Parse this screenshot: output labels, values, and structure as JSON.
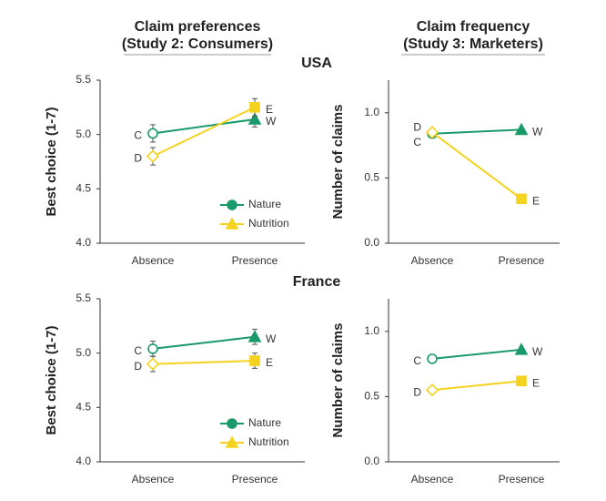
{
  "column_titles": [
    [
      "Claim preferences",
      "(Study 2: Consumers)"
    ],
    [
      "Claim frequency",
      "(Study 3: Marketers)"
    ]
  ],
  "row_titles": [
    "USA",
    "France"
  ],
  "chart_data": [
    {
      "type": "line",
      "ylabel": "Best choice (1-7)",
      "categories": [
        "Absence",
        "Presence"
      ],
      "ylim": [
        4.0,
        5.5
      ],
      "yticks": [
        {
          "value": 4.0,
          "label": "4.0"
        },
        {
          "value": 4.5,
          "label": "4.5"
        },
        {
          "value": 5.0,
          "label": "5.0"
        },
        {
          "value": 5.5,
          "label": "5.5"
        }
      ],
      "legend": "lower right",
      "series": [
        {
          "name": "Nature",
          "color": "#1a9a6a",
          "values": [
            5.01,
            5.14
          ],
          "errors": [
            0.08,
            0.07
          ],
          "point_labels": [
            "C",
            "W"
          ],
          "markers": [
            "circle",
            "triangle"
          ],
          "legend_marker": "circle"
        },
        {
          "name": "Nutrition",
          "color": "#f5d21f",
          "values": [
            4.8,
            5.25
          ],
          "errors": [
            0.08,
            0.08
          ],
          "point_labels": [
            "D",
            "E"
          ],
          "markers": [
            "diamond",
            "square"
          ],
          "legend_marker": "triangle"
        }
      ]
    },
    {
      "type": "line",
      "ylabel": "Number of claims",
      "categories": [
        "Absence",
        "Presence"
      ],
      "ylim": [
        0,
        1.25
      ],
      "yticks": [
        {
          "value": 0,
          "label": "0.0"
        },
        {
          "value": 0.5,
          "label": "0.5"
        },
        {
          "value": 1.0,
          "label": "1.0"
        }
      ],
      "series": [
        {
          "name": "Nature",
          "color": "#1a9a6a",
          "values": [
            0.84,
            0.87
          ],
          "point_labels": [
            "C",
            "W"
          ],
          "markers": [
            "circle",
            "triangle"
          ]
        },
        {
          "name": "Nutrition",
          "color": "#f5d21f",
          "values": [
            0.85,
            0.34
          ],
          "point_labels": [
            "D",
            "E"
          ],
          "markers": [
            "diamond",
            "square"
          ]
        }
      ]
    },
    {
      "type": "line",
      "ylabel": "Best choice (1-7)",
      "categories": [
        "Absence",
        "Presence"
      ],
      "ylim": [
        4.0,
        5.5
      ],
      "yticks": [
        {
          "value": 4.0,
          "label": "4.0"
        },
        {
          "value": 4.5,
          "label": "4.5"
        },
        {
          "value": 5.0,
          "label": "5.0"
        },
        {
          "value": 5.5,
          "label": "5.5"
        }
      ],
      "legend": "lower right",
      "series": [
        {
          "name": "Nature",
          "color": "#1a9a6a",
          "values": [
            5.04,
            5.15
          ],
          "errors": [
            0.07,
            0.07
          ],
          "point_labels": [
            "C",
            "W"
          ],
          "markers": [
            "circle",
            "triangle"
          ],
          "legend_marker": "circle"
        },
        {
          "name": "Nutrition",
          "color": "#f5d21f",
          "values": [
            4.9,
            4.93
          ],
          "errors": [
            0.07,
            0.07
          ],
          "point_labels": [
            "D",
            "E"
          ],
          "markers": [
            "diamond",
            "square"
          ],
          "legend_marker": "triangle"
        }
      ]
    },
    {
      "type": "line",
      "ylabel": "Number of claims",
      "categories": [
        "Absence",
        "Presence"
      ],
      "ylim": [
        0,
        1.25
      ],
      "yticks": [
        {
          "value": 0,
          "label": "0.0"
        },
        {
          "value": 0.5,
          "label": "0.5"
        },
        {
          "value": 1.0,
          "label": "1.0"
        }
      ],
      "series": [
        {
          "name": "Nature",
          "color": "#1a9a6a",
          "values": [
            0.79,
            0.86
          ],
          "point_labels": [
            "C",
            "W"
          ],
          "markers": [
            "circle",
            "triangle"
          ]
        },
        {
          "name": "Nutrition",
          "color": "#f5d21f",
          "values": [
            0.55,
            0.62
          ],
          "point_labels": [
            "D",
            "E"
          ],
          "markers": [
            "diamond",
            "square"
          ]
        }
      ]
    }
  ]
}
